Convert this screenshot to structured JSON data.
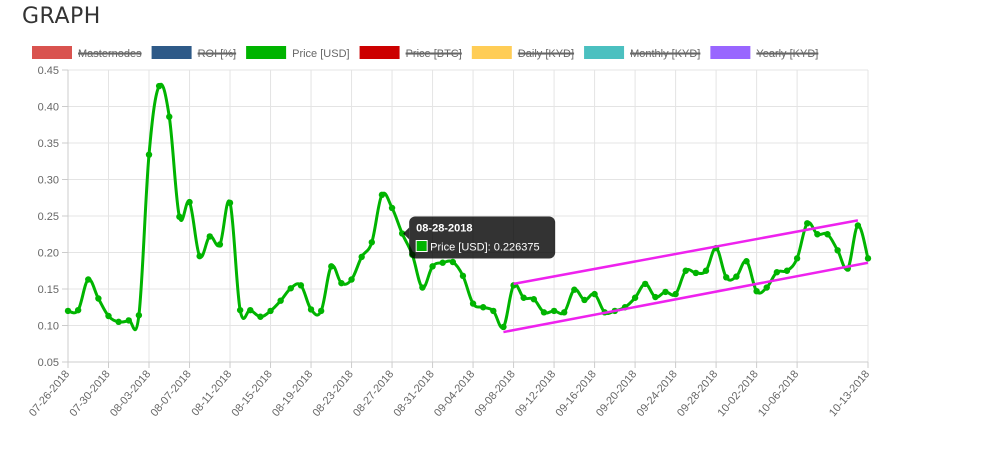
{
  "page": {
    "title": "GRAPH"
  },
  "chart_data": {
    "type": "line",
    "legend": [
      {
        "label": "Masternodes",
        "color": "#d9534f",
        "hidden": true
      },
      {
        "label": "ROI [%]",
        "color": "#2e5a88",
        "hidden": true
      },
      {
        "label": "Price [USD]",
        "color": "#00b400",
        "hidden": false
      },
      {
        "label": "Price [BTC]",
        "color": "#cc0000",
        "hidden": true
      },
      {
        "label": "Daily [KYD]",
        "color": "#ffcd56",
        "hidden": true
      },
      {
        "label": "Monthly [KYD]",
        "color": "#4bc0c0",
        "hidden": true
      },
      {
        "label": "Yearly [KYD]",
        "color": "#9966ff",
        "hidden": true
      }
    ],
    "legend_position": "top",
    "grid": true,
    "ylim": [
      0.05,
      0.45
    ],
    "y_ticks": [
      "0.45",
      "0.40",
      "0.35",
      "0.30",
      "0.25",
      "0.20",
      "0.15",
      "0.10",
      "0.05"
    ],
    "x_labels": [
      "07-26-2018",
      "07-30-2018",
      "08-03-2018",
      "08-07-2018",
      "08-11-2018",
      "08-15-2018",
      "08-19-2018",
      "08-23-2018",
      "08-27-2018",
      "08-31-2018",
      "09-04-2018",
      "09-08-2018",
      "09-12-2018",
      "09-16-2018",
      "09-20-2018",
      "09-24-2018",
      "09-28-2018",
      "10-02-2018",
      "10-06-2018",
      "10-13-2018"
    ],
    "series": [
      {
        "name": "Price [USD]",
        "color": "#00b400",
        "x": [
          "07-26-2018",
          "07-27-2018",
          "07-28-2018",
          "07-29-2018",
          "07-30-2018",
          "07-31-2018",
          "08-01-2018",
          "08-02-2018",
          "08-03-2018",
          "08-04-2018",
          "08-05-2018",
          "08-06-2018",
          "08-07-2018",
          "08-08-2018",
          "08-09-2018",
          "08-10-2018",
          "08-11-2018",
          "08-12-2018",
          "08-13-2018",
          "08-14-2018",
          "08-15-2018",
          "08-16-2018",
          "08-17-2018",
          "08-18-2018",
          "08-19-2018",
          "08-20-2018",
          "08-21-2018",
          "08-22-2018",
          "08-23-2018",
          "08-24-2018",
          "08-25-2018",
          "08-26-2018",
          "08-27-2018",
          "08-28-2018",
          "08-29-2018",
          "08-30-2018",
          "08-31-2018",
          "09-01-2018",
          "09-02-2018",
          "09-03-2018",
          "09-04-2018",
          "09-05-2018",
          "09-06-2018",
          "09-07-2018",
          "09-08-2018",
          "09-09-2018",
          "09-10-2018",
          "09-11-2018",
          "09-12-2018",
          "09-13-2018",
          "09-14-2018",
          "09-15-2018",
          "09-16-2018",
          "09-17-2018",
          "09-18-2018",
          "09-19-2018",
          "09-20-2018",
          "09-21-2018",
          "09-22-2018",
          "09-23-2018",
          "09-24-2018",
          "09-25-2018",
          "09-26-2018",
          "09-27-2018",
          "09-28-2018",
          "09-29-2018",
          "09-30-2018",
          "10-01-2018",
          "10-02-2018",
          "10-03-2018",
          "10-04-2018",
          "10-05-2018",
          "10-06-2018",
          "10-07-2018",
          "10-08-2018",
          "10-09-2018",
          "10-10-2018",
          "10-11-2018",
          "10-12-2018",
          "10-13-2018"
        ],
        "values": [
          0.12,
          0.121,
          0.163,
          0.137,
          0.113,
          0.105,
          0.107,
          0.114,
          0.334,
          0.428,
          0.386,
          0.249,
          0.269,
          0.195,
          0.222,
          0.211,
          0.268,
          0.121,
          0.121,
          0.112,
          0.12,
          0.134,
          0.151,
          0.155,
          0.122,
          0.12,
          0.181,
          0.158,
          0.163,
          0.194,
          0.214,
          0.279,
          0.261,
          0.226,
          0.197,
          0.152,
          0.181,
          0.186,
          0.187,
          0.168,
          0.13,
          0.125,
          0.12,
          0.098,
          0.155,
          0.138,
          0.136,
          0.118,
          0.12,
          0.118,
          0.149,
          0.135,
          0.143,
          0.118,
          0.12,
          0.125,
          0.138,
          0.157,
          0.139,
          0.146,
          0.143,
          0.175,
          0.172,
          0.175,
          0.206,
          0.166,
          0.167,
          0.188,
          0.147,
          0.152,
          0.173,
          0.175,
          0.192,
          0.24,
          0.225,
          0.225,
          0.203,
          0.178,
          0.237,
          0.192
        ]
      }
    ],
    "trend_channel": {
      "color": "#ee22ee",
      "upper": {
        "from": [
          "09-08-2018",
          0.157
        ],
        "to": [
          "10-12-2018",
          0.244
        ]
      },
      "lower": {
        "from": [
          "09-07-2018",
          0.091
        ],
        "to": [
          "10-13-2018",
          0.186
        ]
      }
    },
    "tooltip": {
      "title": "08-28-2018",
      "label": "Price [USD]: 0.226375",
      "point_index": 33
    }
  }
}
